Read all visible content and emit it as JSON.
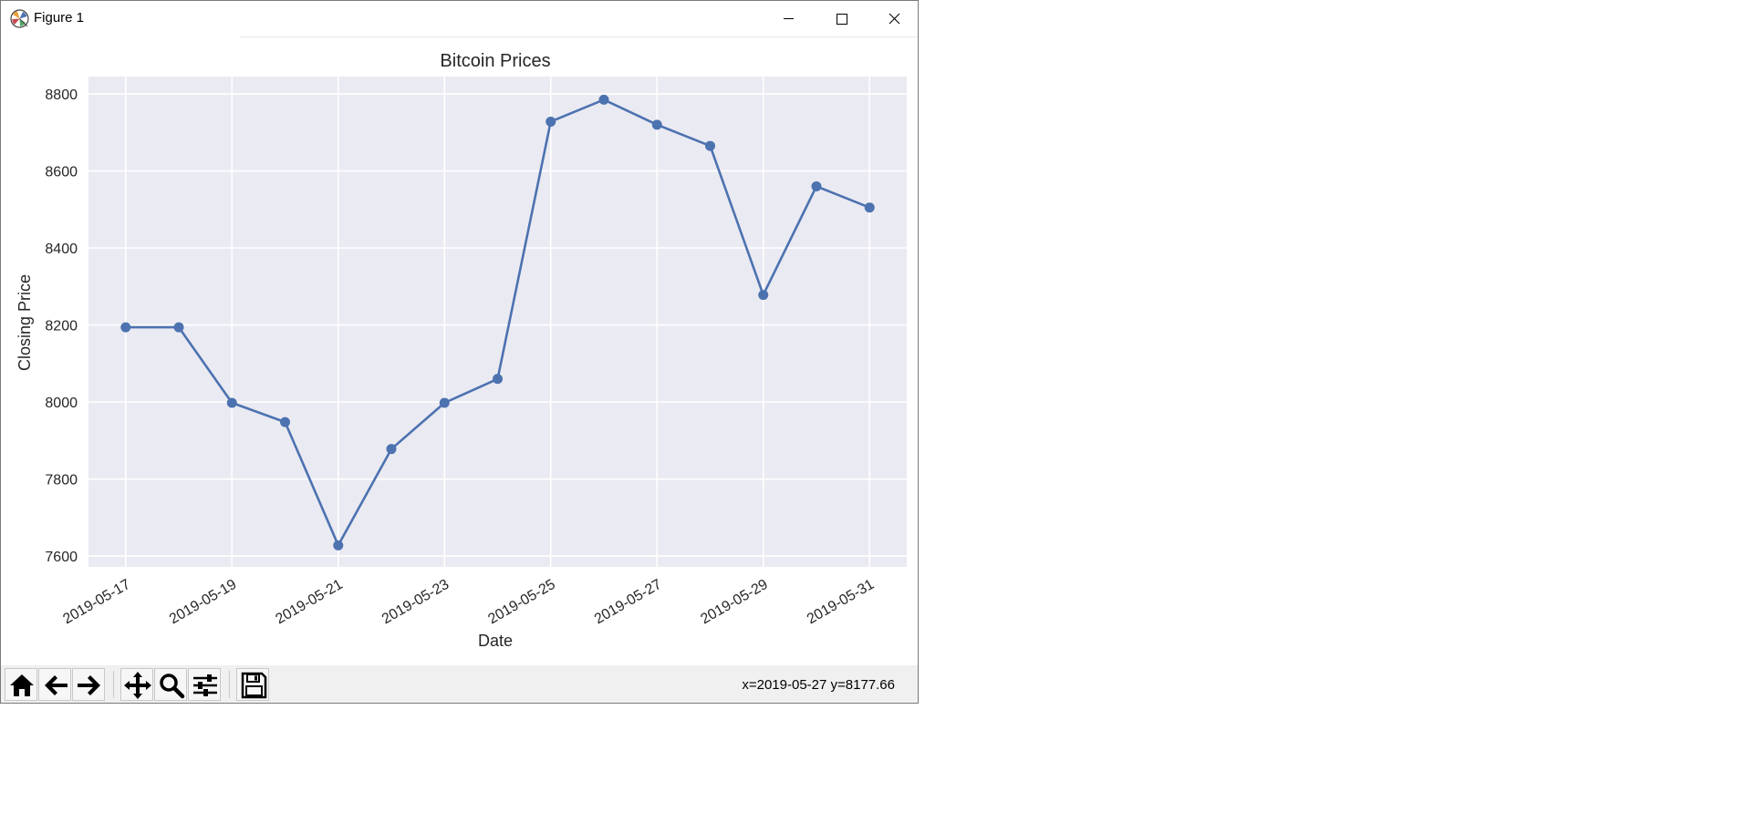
{
  "window": {
    "title": "Figure 1",
    "app_icon": "matplotlib-icon",
    "controls": [
      "minimize-icon",
      "maximize-icon",
      "close-icon"
    ]
  },
  "toolbar": {
    "buttons": [
      {
        "name": "home",
        "icon": "home-icon"
      },
      {
        "name": "back",
        "icon": "arrow-left-icon"
      },
      {
        "name": "forward",
        "icon": "arrow-right-icon"
      },
      {
        "name": "pan",
        "icon": "move-icon"
      },
      {
        "name": "zoom",
        "icon": "magnifier-icon"
      },
      {
        "name": "configure-subplots",
        "icon": "sliders-icon"
      },
      {
        "name": "save",
        "icon": "floppy-disk-icon"
      }
    ],
    "coordinates": "x=2019-05-27 y=8177.66"
  },
  "chart_data": {
    "type": "line",
    "title": "Bitcoin Prices",
    "xlabel": "Date",
    "ylabel": "Closing Price",
    "x": [
      "2019-05-17",
      "2019-05-18",
      "2019-05-19",
      "2019-05-20",
      "2019-05-21",
      "2019-05-22",
      "2019-05-23",
      "2019-05-24",
      "2019-05-25",
      "2019-05-26",
      "2019-05-27",
      "2019-05-28",
      "2019-05-29",
      "2019-05-30",
      "2019-05-31"
    ],
    "series": [
      {
        "values": [
          8194,
          8194,
          7998,
          7948,
          7628,
          7878,
          7998,
          8060,
          8728,
          8785,
          8720,
          8665,
          8278,
          8560,
          8505
        ],
        "color": "#4c72b0",
        "marker": "circle"
      }
    ],
    "xticks": [
      "2019-05-17",
      "2019-05-19",
      "2019-05-21",
      "2019-05-23",
      "2019-05-25",
      "2019-05-27",
      "2019-05-29",
      "2019-05-31"
    ],
    "yticks": [
      7600,
      7800,
      8000,
      8200,
      8400,
      8600,
      8800
    ],
    "xlim": [
      "2019-05-16.3",
      "2019-05-31.7"
    ],
    "ylim": [
      7572,
      8845
    ],
    "grid": true,
    "style": "seaborn",
    "background": "#eaeaf2",
    "legend": "none"
  }
}
